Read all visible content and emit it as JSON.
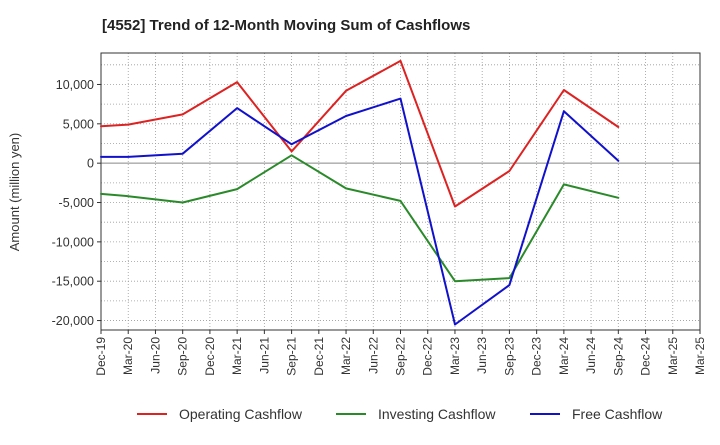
{
  "chart_data": {
    "type": "line",
    "title": "[4552]  Trend of 12-Month Moving Sum of Cashflows",
    "xlabel": "",
    "ylabel": "Amount (million yen)",
    "ylim": [
      -21200,
      14000
    ],
    "yticks": [
      10000,
      5000,
      0,
      -5000,
      -10000,
      -15000,
      -20000
    ],
    "ytick_labels": [
      "10,000",
      "5,000",
      "0",
      "-5,000",
      "-10,000",
      "-15,000",
      "-20,000"
    ],
    "categories": [
      "Dec-19",
      "Mar-20",
      "Jun-20",
      "Sep-20",
      "Dec-20",
      "Mar-21",
      "Jun-21",
      "Sep-21",
      "Dec-21",
      "Mar-22",
      "Jun-22",
      "Sep-22",
      "Dec-22",
      "Mar-23",
      "Jun-23",
      "Sep-23",
      "Dec-23",
      "Mar-24",
      "Jun-24",
      "Sep-24",
      "Dec-24",
      "Mar-25"
    ],
    "extra_tick_label": "Mar-25",
    "grid": true,
    "legend_position": "bottom",
    "series": [
      {
        "name": "Operating Cashflow",
        "color": "#dd2222",
        "values": [
          4700,
          4900,
          null,
          6200,
          null,
          10300,
          null,
          1500,
          null,
          9200,
          null,
          13000,
          null,
          -5500,
          null,
          -1000,
          null,
          9300,
          null,
          4600,
          null,
          null
        ]
      },
      {
        "name": "Investing Cashflow",
        "color": "#2a8a2a",
        "values": [
          -3900,
          -4200,
          null,
          -5000,
          null,
          -3300,
          null,
          1000,
          null,
          -3200,
          null,
          -4800,
          null,
          -15000,
          null,
          -14600,
          null,
          -2700,
          null,
          -4400,
          null,
          null
        ]
      },
      {
        "name": "Free Cashflow",
        "color": "#1111cc",
        "values": [
          800,
          800,
          null,
          1200,
          null,
          7000,
          null,
          2400,
          null,
          6000,
          null,
          8200,
          null,
          -20500,
          null,
          -15500,
          null,
          6600,
          null,
          300,
          null,
          null
        ]
      }
    ]
  }
}
